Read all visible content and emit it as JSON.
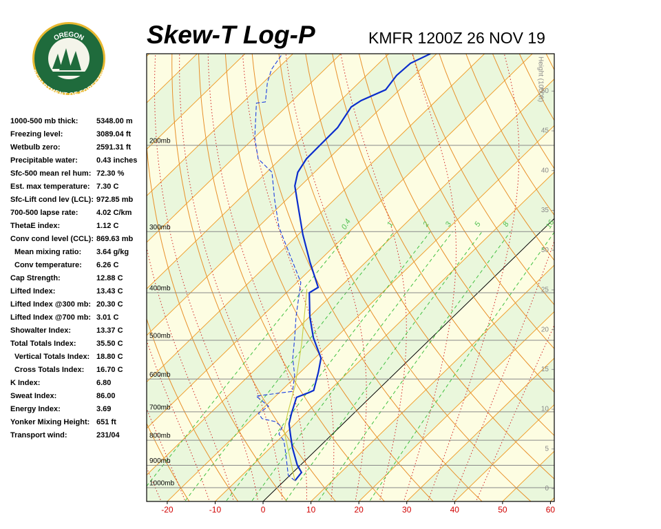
{
  "header": {
    "title": "Skew-T Log-P",
    "station": "KMFR 1200Z 26 NOV 19"
  },
  "logo": {
    "top": "OREGON",
    "bottom": "DEPARTMENT OF FORESTRY"
  },
  "indices": [
    [
      "1000-500 mb thick:",
      "5348.00 m"
    ],
    [
      "Freezing level:",
      "3089.04 ft"
    ],
    [
      "Wetbulb zero:",
      "2591.31 ft"
    ],
    [
      "Precipitable water:",
      "0.43 inches"
    ],
    [
      "Sfc-500 mean rel hum:",
      "72.30 %"
    ],
    [
      "Est. max temperature:",
      "7.30 C"
    ],
    [
      "Sfc-Lift cond lev (LCL):",
      "972.85 mb"
    ],
    [
      "700-500 lapse rate:",
      "4.02 C/km"
    ],
    [
      "ThetaE index:",
      "1.12 C"
    ],
    [
      "Conv cond level (CCL):",
      "869.63 mb"
    ],
    [
      "Mean mixing ratio:",
      "3.64 g/kg"
    ],
    [
      "Conv temperature:",
      "6.26 C"
    ],
    [
      "Cap Strength:",
      "12.88 C"
    ],
    [
      "Lifted Index:",
      "13.43 C"
    ],
    [
      "Lifted Index @300 mb:",
      "20.30 C"
    ],
    [
      "Lifted Index @700 mb:",
      "3.01 C"
    ],
    [
      "Showalter Index:",
      "13.37 C"
    ],
    [
      "Total Totals Index:",
      "35.50 C"
    ],
    [
      "Vertical Totals Index:",
      "18.80 C"
    ],
    [
      "Cross Totals Index:",
      "16.70 C"
    ],
    [
      "K Index:",
      "6.80"
    ],
    [
      "Sweat Index:",
      "86.00"
    ],
    [
      "Energy Index:",
      "3.69"
    ],
    [
      "Yonker Mixing Height:",
      "651 ft"
    ],
    [
      "Transport wind:",
      "231/04"
    ]
  ],
  "chart_data": {
    "type": "skewt",
    "xlim": [
      -24.3,
      60.8
    ],
    "xticks": [
      -20,
      -10,
      0,
      10,
      20,
      30,
      40,
      50,
      60
    ],
    "ylim": [
      1067,
      130
    ],
    "log_y": true,
    "yticks": [
      {
        "value": 1000,
        "label": "1000mb"
      },
      {
        "value": 900,
        "label": "900mb"
      },
      {
        "value": 800,
        "label": "800mb"
      },
      {
        "value": 700,
        "label": "700mb"
      },
      {
        "value": 600,
        "label": "600mb"
      },
      {
        "value": 500,
        "label": "500mb"
      },
      {
        "value": 400,
        "label": "400mb"
      },
      {
        "value": 300,
        "label": "300mb"
      },
      {
        "value": 200,
        "label": "200mb"
      }
    ],
    "y2label": "Height (1000ft)",
    "y2lim": [
      -1.6,
      54.7
    ],
    "y2ticks": [
      0,
      5,
      10,
      15,
      20,
      25,
      30,
      35,
      40,
      45,
      50
    ],
    "mixing_ratios": [
      0.4,
      1,
      2,
      3,
      5,
      8,
      16
    ],
    "series": [
      {
        "color": "#0a2ccc",
        "values": [
          2.2,
          1.8,
          -0.7,
          -5.4,
          -8.8,
          -11.3,
          -13.0,
          -15.4,
          -13.9,
          -13.3,
          -16.3,
          -18.7,
          -24.7,
          -29.9,
          -35.2,
          -34.5,
          -41.7,
          -49.1,
          -56.0,
          -61.2,
          -63.5,
          -64.6,
          -64.7,
          -64.8,
          -66.4,
          -65.7,
          -62.9,
          -63.7,
          -63.4,
          -61.3
        ],
        "pressure": [
          968,
          931,
          899,
          829,
          777,
          740,
          705,
          654,
          640,
          633,
          580,
          544,
          494,
          448,
          400,
          390,
          346,
          304,
          267,
          242,
          227,
          213,
          199,
          184,
          167,
          162,
          154,
          144,
          136,
          130
        ]
      },
      {
        "color": "#1a3ce0",
        "dashed": true,
        "values": [
          2.2,
          -0.4,
          -5.3,
          -8.7,
          -11.2,
          -12.0,
          -14.6,
          -18.0,
          -19.9,
          -19.3,
          -24.1,
          -17.5,
          -20.5,
          -24.6,
          -28.6,
          -32.8,
          -39.2,
          -45.3,
          -55.6,
          -62.5,
          -68.9,
          -74.7,
          -79.9,
          -87.0,
          -85.4,
          -89.1,
          -91.1,
          -92.2
        ],
        "pressure": [
          968,
          943,
          856,
          802,
          777,
          752,
          733,
          723,
          705,
          682,
          650,
          636,
          590,
          544,
          494,
          448,
          381,
          346,
          294,
          258,
          227,
          213,
          193,
          164,
          163,
          149,
          140,
          130
        ]
      },
      {
        "color": "#c8cc40",
        "values": [
          2.2,
          -4.6,
          -10.9,
          -13.8,
          -18.2,
          -25.7,
          -36.5
        ],
        "pressure": [
          968,
          856,
          764,
          705,
          619,
          510,
          393
        ]
      }
    ]
  }
}
